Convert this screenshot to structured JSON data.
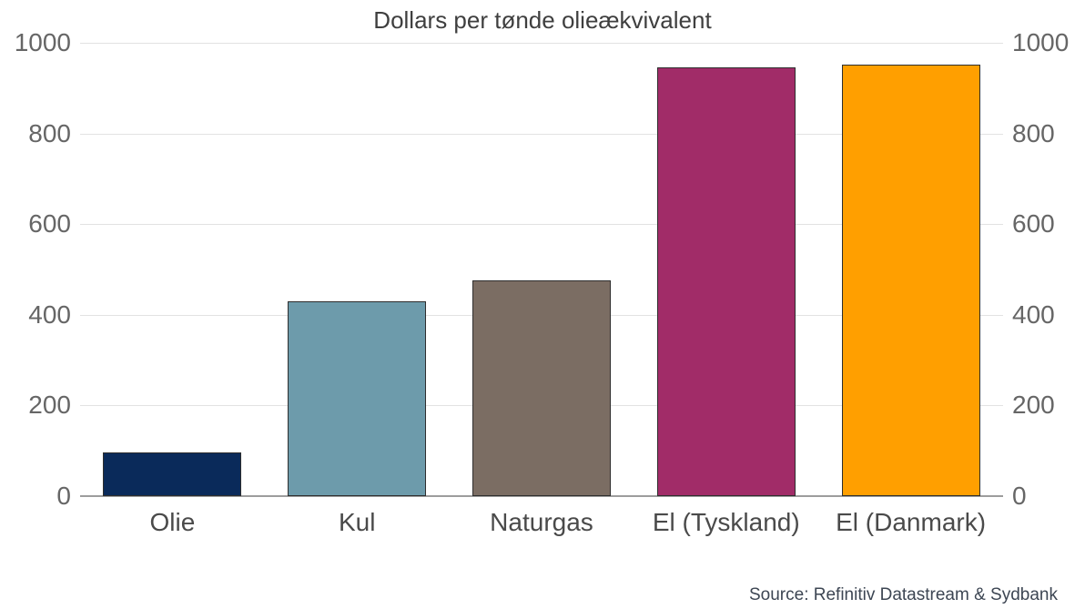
{
  "chart_data": {
    "type": "bar",
    "title": "Dollars per tønde olieækvivalent",
    "categories": [
      "Olie",
      "Kul",
      "Naturgas",
      "El (Tyskland)",
      "El (Danmark)"
    ],
    "values": [
      97,
      430,
      475,
      945,
      952
    ],
    "colors": [
      "#0a2a5a",
      "#6d9bab",
      "#7b6d63",
      "#a12c68",
      "#ff9f00"
    ],
    "ylim": [
      0,
      1000
    ],
    "yticks": [
      0,
      200,
      400,
      600,
      800,
      1000
    ],
    "y_axis_sides": "both",
    "grid": true,
    "legend": "none",
    "source": "Source: Refinitiv Datastream & Sydbank"
  }
}
